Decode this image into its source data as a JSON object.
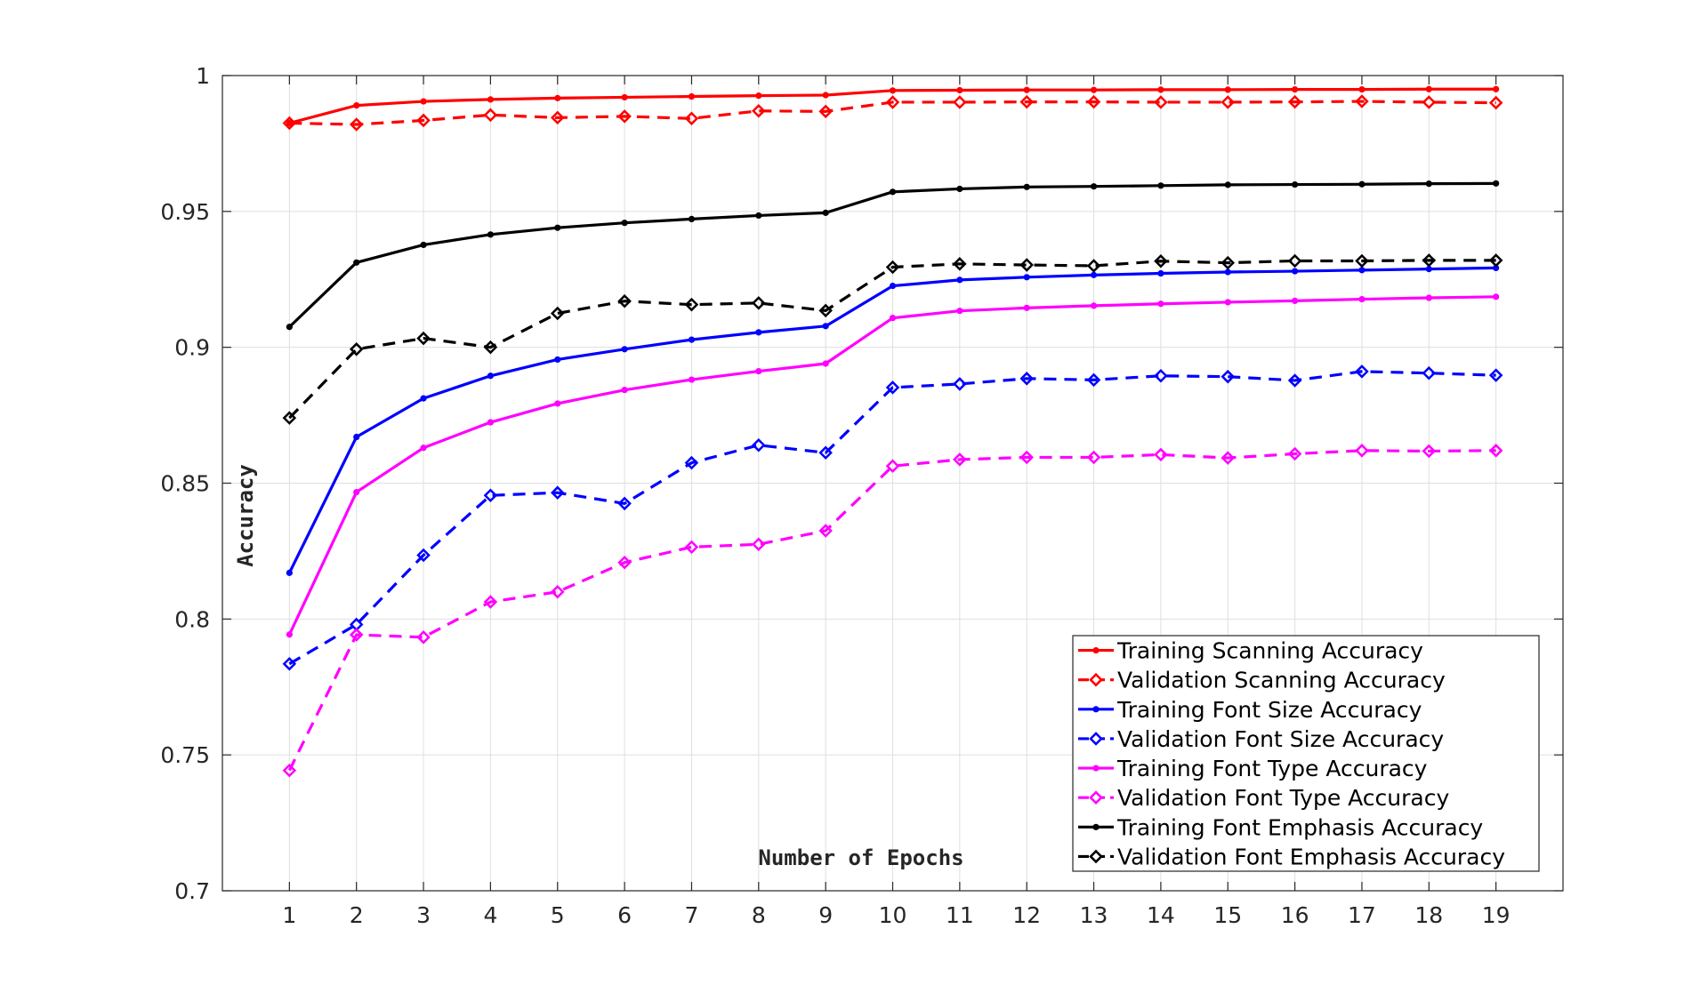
{
  "chart_data": {
    "type": "line",
    "title": "",
    "xlabel": "Number of Epochs",
    "ylabel": "Accuracy",
    "xlim": [
      0,
      20
    ],
    "ylim": [
      0.7,
      1.0
    ],
    "grid": true,
    "legend_position": "bottom-right",
    "x": [
      1,
      2,
      3,
      4,
      5,
      6,
      7,
      8,
      9,
      10,
      11,
      12,
      13,
      14,
      15,
      16,
      17,
      18,
      19
    ],
    "x_ticks": [
      "1",
      "2",
      "3",
      "4",
      "5",
      "6",
      "7",
      "8",
      "9",
      "10",
      "11",
      "12",
      "13",
      "14",
      "15",
      "16",
      "17",
      "18",
      "19"
    ],
    "y_ticks": [
      "0.7",
      "0.75",
      "0.8",
      "0.85",
      "0.9",
      "0.95",
      "1"
    ],
    "series": [
      {
        "name": "Training Scanning Accuracy",
        "color": "#ff0000",
        "dash": "solid",
        "marker": "dot",
        "values": [
          0.9825,
          0.989,
          0.9905,
          0.9912,
          0.9917,
          0.992,
          0.9923,
          0.9926,
          0.9928,
          0.9945,
          0.9946,
          0.9947,
          0.9947,
          0.9948,
          0.9948,
          0.9949,
          0.9949,
          0.995,
          0.995
        ]
      },
      {
        "name": "Validation Scanning Accuracy",
        "color": "#ff0000",
        "dash": "dashed",
        "marker": "diamond",
        "values": [
          0.9825,
          0.982,
          0.9835,
          0.9855,
          0.9845,
          0.985,
          0.9842,
          0.987,
          0.9868,
          0.9902,
          0.9902,
          0.9903,
          0.9903,
          0.9902,
          0.9902,
          0.9903,
          0.9905,
          0.9902,
          0.99
        ]
      },
      {
        "name": "Training Font Size Accuracy",
        "color": "#0000ff",
        "dash": "solid",
        "marker": "dot",
        "values": [
          0.817,
          0.867,
          0.8812,
          0.8895,
          0.8955,
          0.8993,
          0.9028,
          0.9055,
          0.9078,
          0.9226,
          0.9248,
          0.9258,
          0.9266,
          0.9272,
          0.9277,
          0.928,
          0.9284,
          0.9288,
          0.9292
        ]
      },
      {
        "name": "Validation Font Size Accuracy",
        "color": "#0000ff",
        "dash": "dashed",
        "marker": "diamond",
        "values": [
          0.7835,
          0.798,
          0.8235,
          0.8455,
          0.8465,
          0.8425,
          0.8575,
          0.864,
          0.8612,
          0.8852,
          0.8865,
          0.8885,
          0.888,
          0.8895,
          0.8892,
          0.8878,
          0.8911,
          0.8905,
          0.8897
        ]
      },
      {
        "name": "Training Font Type Accuracy",
        "color": "#ff00ff",
        "dash": "solid",
        "marker": "dot",
        "values": [
          0.7943,
          0.8467,
          0.863,
          0.8724,
          0.8793,
          0.8843,
          0.8881,
          0.8912,
          0.894,
          0.9108,
          0.9134,
          0.9145,
          0.9153,
          0.916,
          0.9166,
          0.9171,
          0.9177,
          0.9182,
          0.9186
        ]
      },
      {
        "name": "Validation Font Type Accuracy",
        "color": "#ff00ff",
        "dash": "dashed",
        "marker": "diamond",
        "values": [
          0.7443,
          0.7942,
          0.7933,
          0.8063,
          0.81,
          0.8208,
          0.8265,
          0.8275,
          0.8325,
          0.8563,
          0.8587,
          0.8595,
          0.8595,
          0.8605,
          0.8593,
          0.8608,
          0.862,
          0.8618,
          0.862
        ]
      },
      {
        "name": "Training Font Emphasis Accuracy",
        "color": "#000000",
        "dash": "solid",
        "marker": "dot",
        "values": [
          0.9075,
          0.9312,
          0.9377,
          0.9415,
          0.944,
          0.9458,
          0.9472,
          0.9485,
          0.9495,
          0.9572,
          0.9583,
          0.959,
          0.9592,
          0.9595,
          0.9598,
          0.9599,
          0.96,
          0.9602,
          0.9603
        ]
      },
      {
        "name": "Validation Font Emphasis Accuracy",
        "color": "#000000",
        "dash": "dashed",
        "marker": "diamond",
        "values": [
          0.874,
          0.8993,
          0.9033,
          0.9,
          0.9125,
          0.917,
          0.9157,
          0.9163,
          0.9135,
          0.9295,
          0.9307,
          0.9303,
          0.93,
          0.9317,
          0.9311,
          0.9318,
          0.9318,
          0.932,
          0.932
        ]
      }
    ]
  }
}
